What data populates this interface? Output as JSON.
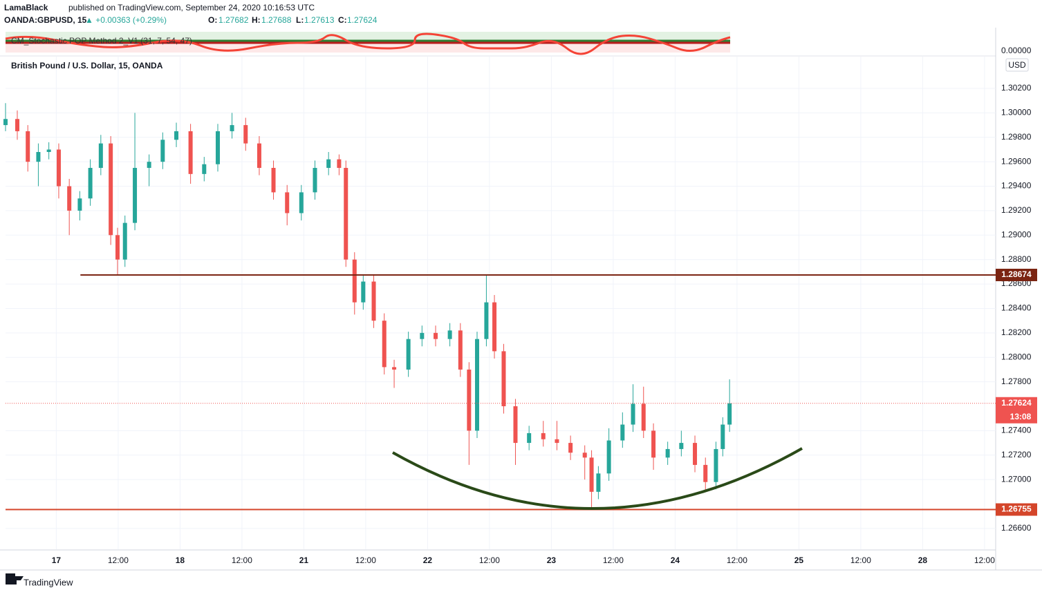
{
  "header": {
    "publisher": "LamaBlack",
    "published_text": "published on TradingView.com, September 24, 2020 10:16:53 UTC",
    "symbol": "OANDA:GBPUSD, 15",
    "change": "▲ +0.00363 (+0.29%)",
    "o_label": "O:",
    "open": 1.27682,
    "h_label": "H:",
    "high": 1.27688,
    "l_label": "L:",
    "low": 1.27613,
    "c_label": "C:",
    "close": 1.27624
  },
  "indicator": {
    "name": "CM_Stochastic POP Method 2_V1 (31, 7, 54, 47)",
    "axis_value": "0.00000"
  },
  "footer": {
    "brand": "TradingView"
  },
  "chart_data": {
    "type": "candlestick",
    "title": "British Pound / U.S. Dollar, 15, OANDA",
    "currency": "USD",
    "up_color": "#26a69a",
    "down_color": "#ef5350",
    "grid": true,
    "x": [
      -0.82,
      -0.63,
      -0.46,
      -0.29,
      -0.12,
      0.04,
      0.21,
      0.38,
      0.55,
      0.72,
      0.88,
      0.99,
      1.11,
      1.27,
      1.5,
      1.72,
      1.94,
      2.17,
      2.39,
      2.61,
      2.84,
      3.06,
      3.28,
      3.51,
      3.73,
      3.96,
      4.18,
      4.4,
      4.57,
      4.68,
      4.82,
      4.96,
      5.13,
      5.3,
      5.46,
      5.69,
      5.91,
      6.13,
      6.36,
      6.53,
      6.67,
      6.8,
      6.95,
      7.08,
      7.23,
      7.42,
      7.64,
      7.87,
      8.09,
      8.31,
      8.54,
      8.65,
      8.76,
      8.93,
      9.15,
      9.32,
      9.49,
      9.65,
      9.88,
      10.1,
      10.32,
      10.49,
      10.66,
      10.77,
      10.88
    ],
    "open": [
      1.299,
      1.2995,
      1.2985,
      1.296,
      1.2968,
      1.297,
      1.294,
      1.292,
      1.293,
      1.2955,
      1.2975,
      1.29,
      1.288,
      1.291,
      1.2955,
      1.296,
      1.2978,
      1.2985,
      1.295,
      1.2958,
      1.2985,
      1.299,
      1.2975,
      1.2955,
      1.2935,
      1.2918,
      1.2935,
      1.2955,
      1.2962,
      1.2955,
      1.288,
      1.2845,
      1.2862,
      1.283,
      1.2792,
      1.279,
      1.2815,
      1.282,
      1.2815,
      1.2822,
      1.279,
      1.274,
      1.2815,
      1.2845,
      1.2805,
      1.276,
      1.273,
      1.2738,
      1.2733,
      1.273,
      1.2722,
      1.2718,
      1.269,
      1.2705,
      1.2732,
      1.2745,
      1.2762,
      1.274,
      1.2718,
      1.2725,
      1.273,
      1.2712,
      1.2698,
      1.2725,
      1.2745
    ],
    "high": [
      1.3008,
      1.3002,
      1.299,
      1.2975,
      1.2976,
      1.2975,
      1.2946,
      1.2936,
      1.2962,
      1.2982,
      1.2981,
      1.2906,
      1.2916,
      1.3,
      1.2966,
      1.2984,
      1.2992,
      1.2991,
      1.2964,
      1.2991,
      1.3,
      1.2996,
      1.2981,
      1.2961,
      1.2941,
      1.2941,
      1.2961,
      1.2968,
      1.2966,
      1.2961,
      1.2886,
      1.2868,
      1.2868,
      1.2836,
      1.2798,
      1.2821,
      1.2826,
      1.2826,
      1.2828,
      1.2828,
      1.2796,
      1.2821,
      1.28674,
      1.2851,
      1.2811,
      1.2766,
      1.2744,
      1.2748,
      1.2748,
      1.2736,
      1.2728,
      1.2724,
      1.2711,
      1.2742,
      1.2755,
      1.2778,
      1.2776,
      1.2746,
      1.2731,
      1.274,
      1.2736,
      1.2718,
      1.2731,
      1.2751,
      1.2782
    ],
    "low": [
      1.2985,
      1.2978,
      1.2952,
      1.294,
      1.2962,
      1.293,
      1.29,
      1.2912,
      1.2924,
      1.2949,
      1.2892,
      1.28674,
      1.2874,
      1.2904,
      1.294,
      1.2954,
      1.2972,
      1.2942,
      1.2944,
      1.2952,
      1.2979,
      1.2969,
      1.2949,
      1.2929,
      1.2908,
      1.2912,
      1.2929,
      1.2949,
      1.2949,
      1.2874,
      1.2835,
      1.2839,
      1.2824,
      1.2786,
      1.2775,
      1.2784,
      1.2809,
      1.2809,
      1.2809,
      1.2784,
      1.2712,
      1.2734,
      1.2809,
      1.2799,
      1.2754,
      1.2712,
      1.2724,
      1.2727,
      1.2724,
      1.2716,
      1.27,
      1.26755,
      1.2684,
      1.2699,
      1.2726,
      1.2739,
      1.2734,
      1.2708,
      1.2712,
      1.2719,
      1.2706,
      1.269,
      1.2692,
      1.2719,
      1.2739
    ],
    "close": [
      1.2995,
      1.2985,
      1.296,
      1.2968,
      1.297,
      1.294,
      1.292,
      1.293,
      1.2955,
      1.2975,
      1.29,
      1.288,
      1.291,
      1.2955,
      1.296,
      1.2978,
      1.2985,
      1.295,
      1.2958,
      1.2985,
      1.299,
      1.2975,
      1.2955,
      1.2935,
      1.2918,
      1.2935,
      1.2955,
      1.2962,
      1.2955,
      1.288,
      1.2845,
      1.2862,
      1.283,
      1.2792,
      1.279,
      1.2815,
      1.282,
      1.2815,
      1.2822,
      1.279,
      1.274,
      1.2815,
      1.2845,
      1.2805,
      1.276,
      1.273,
      1.2738,
      1.2733,
      1.273,
      1.2722,
      1.2718,
      1.269,
      1.2705,
      1.2732,
      1.2745,
      1.2762,
      1.274,
      1.2718,
      1.2725,
      1.273,
      1.2712,
      1.2698,
      1.2725,
      1.2745,
      1.27624
    ],
    "xlim": [
      -0.82,
      15.18
    ],
    "xticks": [
      {
        "value": 0,
        "label": "17"
      },
      {
        "value": 1,
        "label": "12:00"
      },
      {
        "value": 2,
        "label": "18"
      },
      {
        "value": 3,
        "label": "12:00"
      },
      {
        "value": 4,
        "label": "21"
      },
      {
        "value": 5,
        "label": "12:00"
      },
      {
        "value": 6,
        "label": "22"
      },
      {
        "value": 7,
        "label": "12:00"
      },
      {
        "value": 8,
        "label": "23"
      },
      {
        "value": 9,
        "label": "12:00"
      },
      {
        "value": 10,
        "label": "24"
      },
      {
        "value": 11,
        "label": "12:00"
      },
      {
        "value": 12,
        "label": "25"
      },
      {
        "value": 13,
        "label": "12:00"
      },
      {
        "value": 14,
        "label": "28"
      },
      {
        "value": 15,
        "label": "12:00"
      }
    ],
    "ylim": [
      1.2643,
      1.3046
    ],
    "yticks": [
      {
        "value": 1.266,
        "label": "1.26600"
      },
      {
        "value": 1.27,
        "label": "1.27000"
      },
      {
        "value": 1.272,
        "label": "1.27200"
      },
      {
        "value": 1.274,
        "label": "1.27400"
      },
      {
        "value": 1.278,
        "label": "1.27800"
      },
      {
        "value": 1.28,
        "label": "1.28000"
      },
      {
        "value": 1.282,
        "label": "1.28200"
      },
      {
        "value": 1.284,
        "label": "1.28400"
      },
      {
        "value": 1.286,
        "label": "1.28600"
      },
      {
        "value": 1.288,
        "label": "1.28800"
      },
      {
        "value": 1.29,
        "label": "1.29000"
      },
      {
        "value": 1.292,
        "label": "1.29200"
      },
      {
        "value": 1.294,
        "label": "1.29400"
      },
      {
        "value": 1.296,
        "label": "1.29600"
      },
      {
        "value": 1.298,
        "label": "1.29800"
      },
      {
        "value": 1.3,
        "label": "1.30000"
      },
      {
        "value": 1.302,
        "label": "1.30200"
      }
    ],
    "levels": [
      {
        "value": 1.28674,
        "color": "#7b2412",
        "start": 0.39
      },
      {
        "value": 1.26755,
        "color": "#d4452a",
        "start": -0.82
      }
    ],
    "last_price": 1.27624,
    "last_color": "#ef5350",
    "countdown": "13:08"
  }
}
